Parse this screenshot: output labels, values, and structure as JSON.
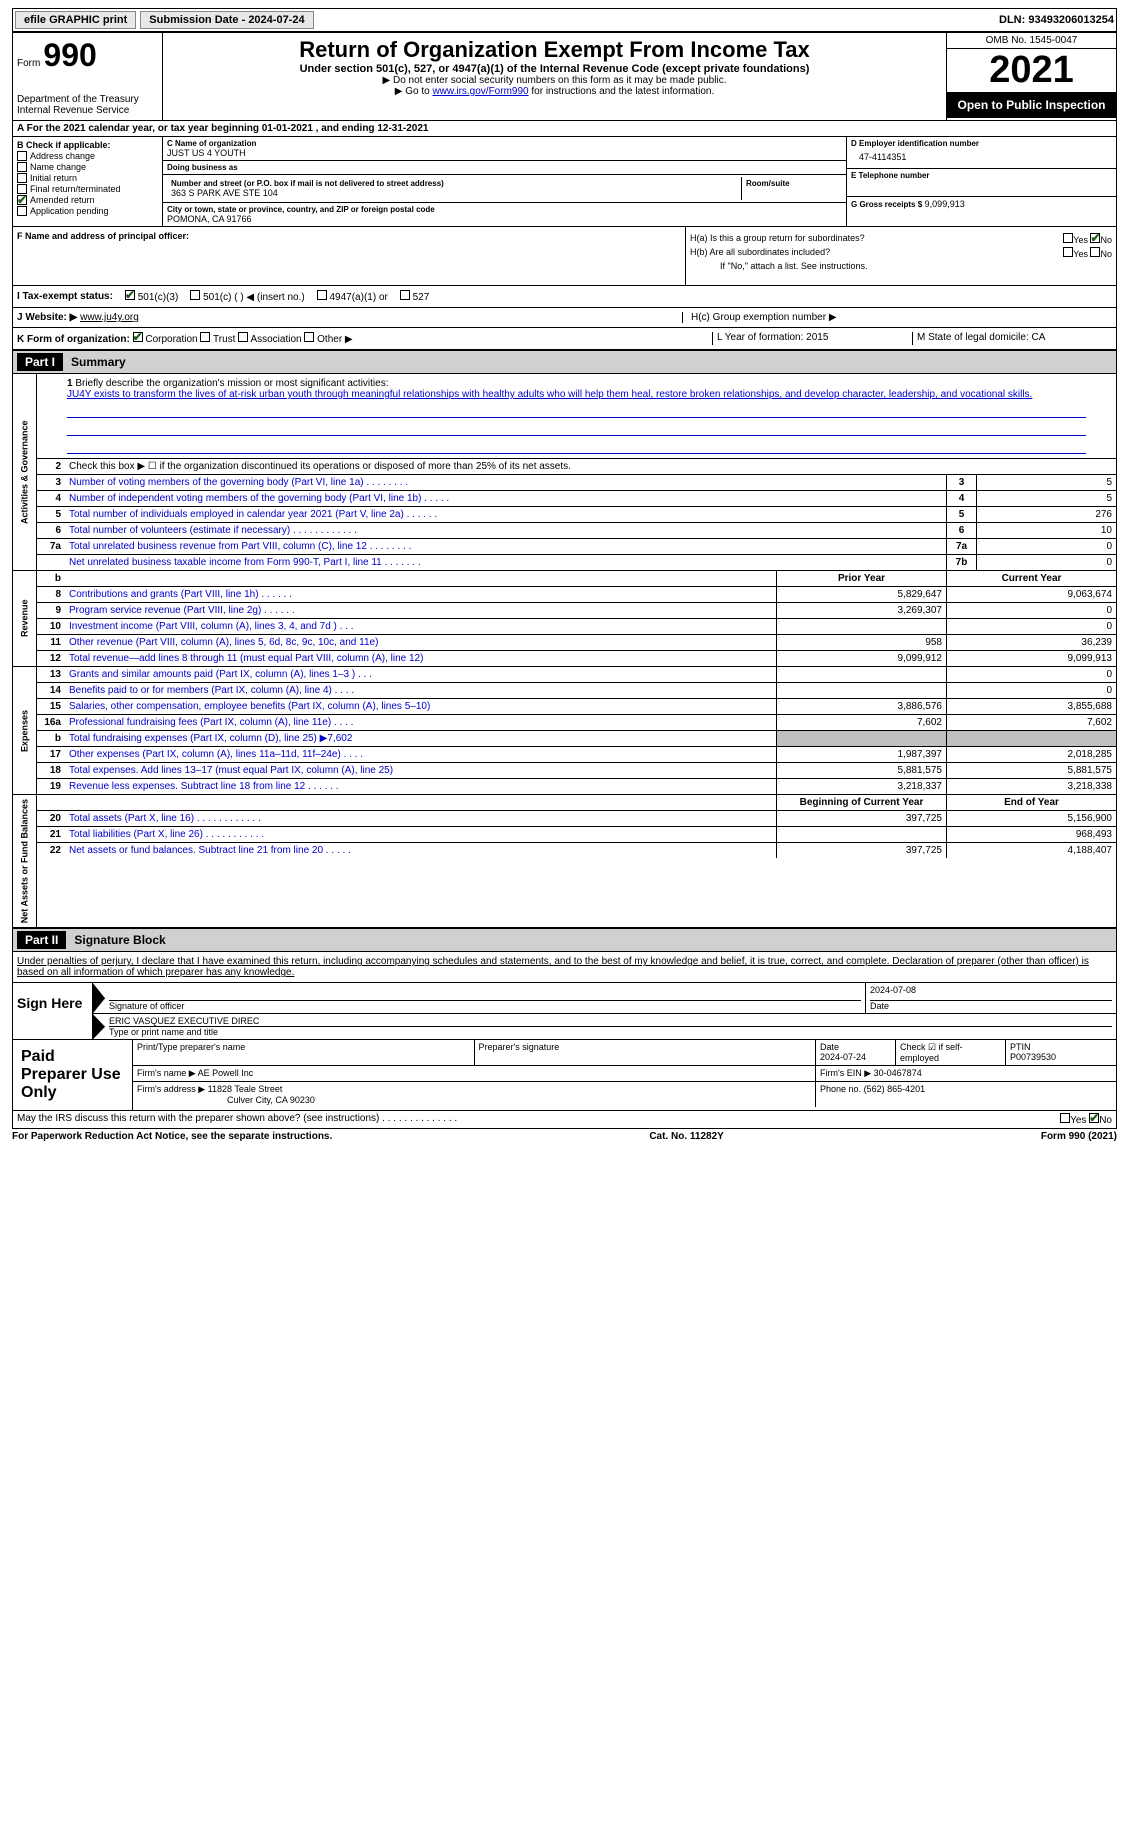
{
  "topbar": {
    "efile": "efile GRAPHIC print",
    "submission": "Submission Date - 2024-07-24",
    "dln": "DLN: 93493206013254"
  },
  "header": {
    "form": "Form",
    "num": "990",
    "dept": "Department of the Treasury\nInternal Revenue Service",
    "title": "Return of Organization Exempt From Income Tax",
    "sub": "Under section 501(c), 527, or 4947(a)(1) of the Internal Revenue Code (except private foundations)",
    "note1": "▶ Do not enter social security numbers on this form as it may be made public.",
    "note2_pre": "▶ Go to ",
    "note2_link": "www.irs.gov/Form990",
    "note2_post": " for instructions and the latest information.",
    "omb": "OMB No. 1545-0047",
    "year": "2021",
    "inspect": "Open to Public Inspection"
  },
  "row_a": "A For the 2021 calendar year, or tax year beginning 01-01-2021   , and ending 12-31-2021",
  "box_b": {
    "lbl": "B Check if applicable:",
    "addr": "Address change",
    "name": "Name change",
    "init": "Initial return",
    "final": "Final return/terminated",
    "amend": "Amended return",
    "app": "Application pending"
  },
  "box_c": {
    "name_lbl": "C Name of organization",
    "name": "JUST US 4 YOUTH",
    "dba_lbl": "Doing business as",
    "dba": "",
    "street_lbl": "Number and street (or P.O. box if mail is not delivered to street address)",
    "street": "363 S PARK AVE STE 104",
    "room_lbl": "Room/suite",
    "city_lbl": "City or town, state or province, country, and ZIP or foreign postal code",
    "city": "POMONA, CA  91766"
  },
  "box_d": {
    "ein_lbl": "D Employer identification number",
    "ein": "47-4114351",
    "tel_lbl": "E Telephone number",
    "tel": "",
    "gross_lbl": "G Gross receipts $",
    "gross": "9,099,913"
  },
  "box_f": {
    "lbl": "F  Name and address of principal officer:",
    "val": ""
  },
  "box_h": {
    "ha": "H(a)  Is this a group return for subordinates?",
    "hb": "H(b)  Are all subordinates included?",
    "hb_note": "If \"No,\" attach a list. See instructions.",
    "hc": "H(c)  Group exemption number ▶",
    "yes": "Yes",
    "no": "No"
  },
  "tax_status": {
    "i": "I  Tax-exempt status:",
    "o1": "501(c)(3)",
    "o2": "501(c) (  ) ◀ (insert no.)",
    "o3": "4947(a)(1) or",
    "o4": "527"
  },
  "website": {
    "j": "J Website: ▶",
    "val": "www.ju4y.org"
  },
  "form_org": {
    "k": "K Form of organization:",
    "corp": "Corporation",
    "trust": "Trust",
    "assoc": "Association",
    "other": "Other ▶",
    "l": "L Year of formation: 2015",
    "m": "M State of legal domicile: CA"
  },
  "part1": {
    "hdr": "Part I",
    "title": "Summary",
    "l1": "Briefly describe the organization's mission or most significant activities:",
    "mission": "JU4Y exists to transform the lives of at-risk urban youth through meaningful relationships with healthy adults who will help them heal, restore broken relationships, and develop character, leadership, and vocational skills.",
    "l2": "Check this box ▶ ☐ if the organization discontinued its operations or disposed of more than 25% of its net assets.",
    "rows_gov": [
      {
        "n": "3",
        "t": "Number of voting members of the governing body (Part VI, line 1a)   .   .   .   .   .   .   .   .",
        "b": "3",
        "v": "5"
      },
      {
        "n": "4",
        "t": "Number of independent voting members of the governing body (Part VI, line 1b)   .   .   .   .   .",
        "b": "4",
        "v": "5"
      },
      {
        "n": "5",
        "t": "Total number of individuals employed in calendar year 2021 (Part V, line 2a)   .   .   .   .   .   .",
        "b": "5",
        "v": "276"
      },
      {
        "n": "6",
        "t": "Total number of volunteers (estimate if necessary)   .   .   .   .   .   .   .   .   .   .   .   .",
        "b": "6",
        "v": "10"
      },
      {
        "n": "7a",
        "t": "Total unrelated business revenue from Part VIII, column (C), line 12   .   .   .   .   .   .   .   .",
        "b": "7a",
        "v": "0"
      },
      {
        "n": "",
        "t": "Net unrelated business taxable income from Form 990-T, Part I, line 11   .   .   .   .   .   .   .",
        "b": "7b",
        "v": "0"
      }
    ],
    "hdr_prior": "Prior Year",
    "hdr_current": "Current Year",
    "rows_rev": [
      {
        "n": "8",
        "t": "Contributions and grants (Part VIII, line 1h)   .   .   .   .   .   .",
        "p": "5,829,647",
        "c": "9,063,674"
      },
      {
        "n": "9",
        "t": "Program service revenue (Part VIII, line 2g)   .   .   .   .   .   .",
        "p": "3,269,307",
        "c": "0"
      },
      {
        "n": "10",
        "t": "Investment income (Part VIII, column (A), lines 3, 4, and 7d )   .   .   .",
        "p": "",
        "c": "0"
      },
      {
        "n": "11",
        "t": "Other revenue (Part VIII, column (A), lines 5, 6d, 8c, 9c, 10c, and 11e)",
        "p": "958",
        "c": "36,239"
      },
      {
        "n": "12",
        "t": "Total revenue—add lines 8 through 11 (must equal Part VIII, column (A), line 12)",
        "p": "9,099,912",
        "c": "9,099,913"
      }
    ],
    "rows_exp": [
      {
        "n": "13",
        "t": "Grants and similar amounts paid (Part IX, column (A), lines 1–3 )   .   .   .",
        "p": "",
        "c": "0"
      },
      {
        "n": "14",
        "t": "Benefits paid to or for members (Part IX, column (A), line 4)   .   .   .   .",
        "p": "",
        "c": "0"
      },
      {
        "n": "15",
        "t": "Salaries, other compensation, employee benefits (Part IX, column (A), lines 5–10)",
        "p": "3,886,576",
        "c": "3,855,688"
      },
      {
        "n": "16a",
        "t": "Professional fundraising fees (Part IX, column (A), line 11e)   .   .   .   .",
        "p": "7,602",
        "c": "7,602"
      },
      {
        "n": "b",
        "t": "Total fundraising expenses (Part IX, column (D), line 25) ▶7,602",
        "p": "gray",
        "c": "gray"
      },
      {
        "n": "17",
        "t": "Other expenses (Part IX, column (A), lines 11a–11d, 11f–24e)   .   .   .   .",
        "p": "1,987,397",
        "c": "2,018,285"
      },
      {
        "n": "18",
        "t": "Total expenses. Add lines 13–17 (must equal Part IX, column (A), line 25)",
        "p": "5,881,575",
        "c": "5,881,575"
      },
      {
        "n": "19",
        "t": "Revenue less expenses. Subtract line 18 from line 12   .   .   .   .   .   .",
        "p": "3,218,337",
        "c": "3,218,338"
      }
    ],
    "hdr_begin": "Beginning of Current Year",
    "hdr_end": "End of Year",
    "rows_net": [
      {
        "n": "20",
        "t": "Total assets (Part X, line 16)   .   .   .   .   .   .   .   .   .   .   .   .",
        "p": "397,725",
        "c": "5,156,900"
      },
      {
        "n": "21",
        "t": "Total liabilities (Part X, line 26)   .   .   .   .   .   .   .   .   .   .   .",
        "p": "",
        "c": "968,493"
      },
      {
        "n": "22",
        "t": "Net assets or fund balances. Subtract line 21 from line 20   .   .   .   .   .",
        "p": "397,725",
        "c": "4,188,407"
      }
    ],
    "side_gov": "Activities & Governance",
    "side_rev": "Revenue",
    "side_exp": "Expenses",
    "side_net": "Net Assets or Fund Balances"
  },
  "part2": {
    "hdr": "Part II",
    "title": "Signature Block",
    "decl": "Under penalties of perjury, I declare that I have examined this return, including accompanying schedules and statements, and to the best of my knowledge and belief, it is true, correct, and complete. Declaration of preparer (other than officer) is based on all information of which preparer has any knowledge.",
    "sign_here": "Sign Here",
    "sig_officer": "Signature of officer",
    "sig_date": "2024-07-08",
    "date_lbl": "Date",
    "officer_name": "ERIC VASQUEZ  EXECUTIVE DIREC",
    "type_name_lbl": "Type or print name and title",
    "paid_prep": "Paid Preparer Use Only",
    "prep_name_lbl": "Print/Type preparer's name",
    "prep_sig_lbl": "Preparer's signature",
    "prep_date_lbl": "Date",
    "prep_date": "2024-07-24",
    "check_self": "Check ☑ if self-employed",
    "ptin_lbl": "PTIN",
    "ptin": "P00739530",
    "firm_name_lbl": "Firm's name    ▶",
    "firm_name": "AE Powell Inc",
    "firm_ein_lbl": "Firm's EIN ▶",
    "firm_ein": "30-0467874",
    "firm_addr_lbl": "Firm's address ▶",
    "firm_addr1": "11828 Teale Street",
    "firm_addr2": "Culver City, CA  90230",
    "phone_lbl": "Phone no.",
    "phone": "(562) 865-4201",
    "discuss": "May the IRS discuss this return with the preparer shown above? (see instructions)   .   .   .   .   .   .   .   .   .   .   .   .   .   ."
  },
  "footer": {
    "pra": "For Paperwork Reduction Act Notice, see the separate instructions.",
    "cat": "Cat. No. 11282Y",
    "form": "Form 990 (2021)"
  }
}
